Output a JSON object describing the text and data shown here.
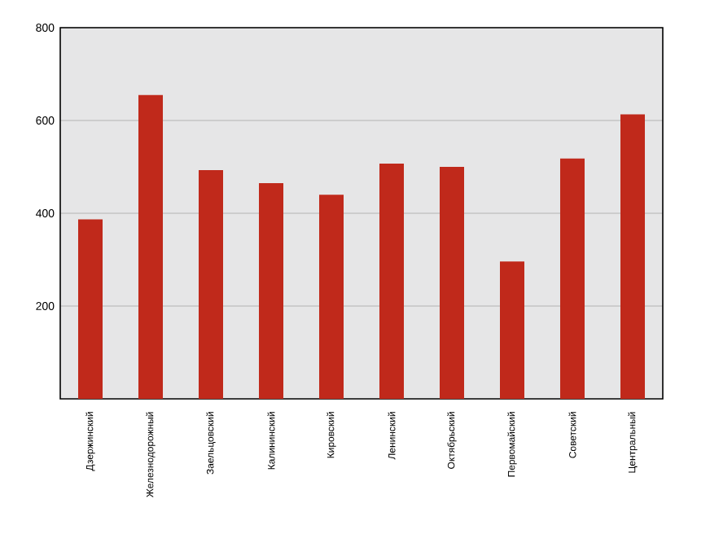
{
  "chart_data": {
    "type": "bar",
    "categories": [
      "Дзержинский",
      "Железнодорожный",
      "Заельцовский",
      "Калининский",
      "Кировский",
      "Ленинский",
      "Октябрьский",
      "Первомайский",
      "Советский",
      "Центральный"
    ],
    "values": [
      387,
      655,
      493,
      465,
      440,
      507,
      500,
      296,
      518,
      613
    ],
    "color": "#c0291b",
    "ylim": [
      0,
      800
    ],
    "yticks": [
      200,
      400,
      600,
      800
    ],
    "grid": "y"
  }
}
